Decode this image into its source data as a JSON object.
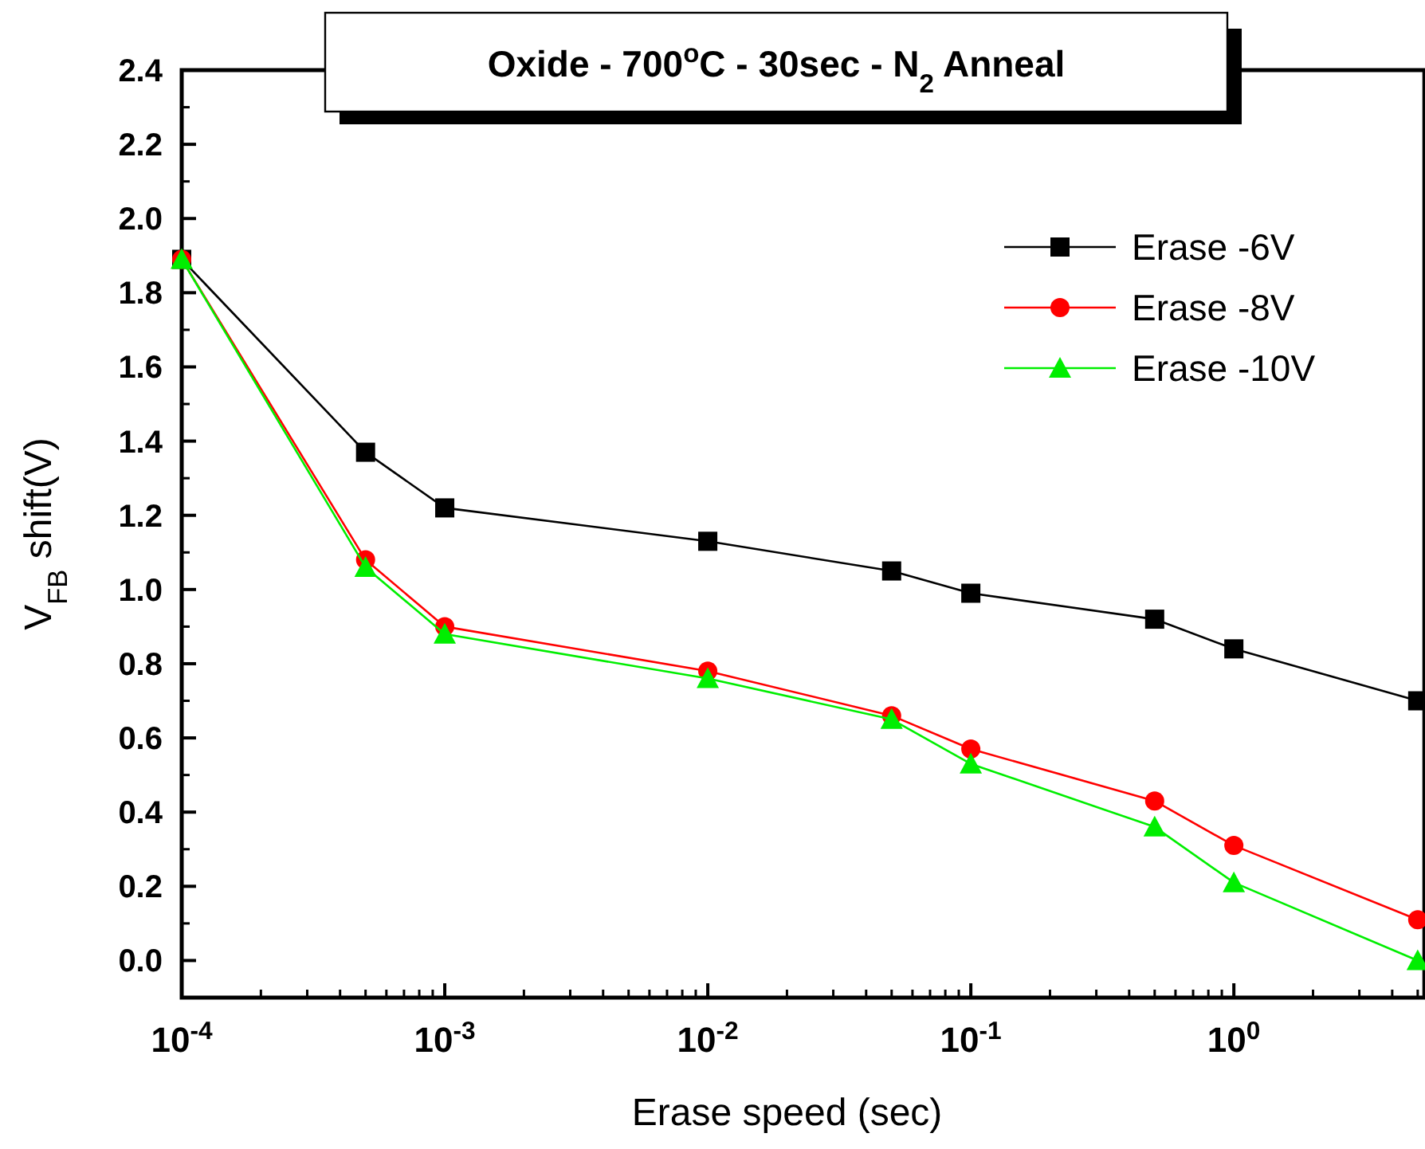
{
  "chart_data": {
    "type": "line",
    "title": "Oxide - 700$^{o}$C - 30sec - N$_{2}$ Anneal",
    "xlabel": "Erase speed (sec)",
    "ylabel": "V$_{FB}$ shift(V)",
    "log": "x",
    "x": [
      0.0001,
      0.0005,
      0.001,
      0.01,
      0.05,
      0.1,
      0.5,
      1,
      5
    ],
    "series": [
      {
        "name": "Erase -6V",
        "color": "#000000",
        "marker": "square",
        "values": [
          1.89,
          1.37,
          1.22,
          1.13,
          1.05,
          0.99,
          0.92,
          0.84,
          0.7
        ]
      },
      {
        "name": "Erase -8V",
        "color": "#ff0000",
        "marker": "circle",
        "values": [
          1.89,
          1.08,
          0.9,
          0.78,
          0.66,
          0.57,
          0.43,
          0.31,
          0.11
        ]
      },
      {
        "name": "Erase -10V",
        "color": "#00ee00",
        "marker": "triangle",
        "values": [
          1.89,
          1.06,
          0.88,
          0.76,
          0.65,
          0.53,
          0.36,
          0.21,
          0.0
        ]
      }
    ],
    "xlim": [
      0.0001,
      5.3
    ],
    "ylim": [
      -0.1,
      2.4
    ],
    "xticks": [
      {
        "value": 0.0001,
        "label": "10$^{-4}$"
      },
      {
        "value": 0.001,
        "label": "10$^{-3}$"
      },
      {
        "value": 0.01,
        "label": "10$^{-2}$"
      },
      {
        "value": 0.1,
        "label": "10$^{-1}$"
      },
      {
        "value": 1,
        "label": "10$^{0}$"
      }
    ],
    "yticks": [
      {
        "value": 0,
        "label": "0.0"
      },
      {
        "value": 0.2,
        "label": "0.2"
      },
      {
        "value": 0.4,
        "label": "0.4"
      },
      {
        "value": 0.6,
        "label": "0.6"
      },
      {
        "value": 0.8,
        "label": "0.8"
      },
      {
        "value": 1,
        "label": "1.0"
      },
      {
        "value": 1.2,
        "label": "1.2"
      },
      {
        "value": 1.4,
        "label": "1.4"
      },
      {
        "value": 1.6,
        "label": "1.6"
      },
      {
        "value": 1.8,
        "label": "1.8"
      },
      {
        "value": 2,
        "label": "2.0"
      },
      {
        "value": 2.2,
        "label": "2.2"
      },
      {
        "value": 2.4,
        "label": "2.4"
      }
    ],
    "legend": "top right",
    "grid": false,
    "line_style": "solid"
  }
}
